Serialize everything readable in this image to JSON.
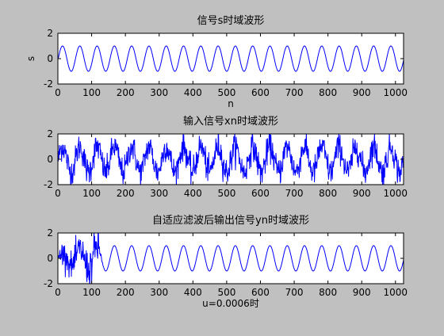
{
  "figure": {
    "background": "#c0c0c0",
    "axes_background": "#ffffff",
    "line_color": "#0000ff"
  },
  "chart_data": [
    {
      "type": "line",
      "title": "信号s时域波形",
      "xlabel": "n",
      "ylabel": "s",
      "xlim": [
        0,
        1024
      ],
      "ylim": [
        -2,
        2
      ],
      "xticks": [
        0,
        100,
        200,
        300,
        400,
        500,
        600,
        700,
        800,
        900,
        1000
      ],
      "yticks": [
        -2,
        0,
        2
      ],
      "grid": false,
      "series": [
        {
          "kind": "sine",
          "amplitude": 1.0,
          "cycles": 20,
          "n": 1024
        }
      ]
    },
    {
      "type": "line",
      "title": "输入信号xn时域波形",
      "xlabel": "",
      "ylabel": "",
      "xlim": [
        0,
        1024
      ],
      "ylim": [
        -2,
        2
      ],
      "xticks": [
        0,
        100,
        200,
        300,
        400,
        500,
        600,
        700,
        800,
        900,
        1000
      ],
      "yticks": [
        -2,
        0,
        2
      ],
      "grid": false,
      "series": [
        {
          "kind": "noisy_sine",
          "amplitude": 1.0,
          "cycles": 20,
          "noise_std": 0.55,
          "n": 1024
        }
      ]
    },
    {
      "type": "line",
      "title": "自适应滤波后输出信号yn时域波形",
      "xlabel": "u=0.0006时",
      "ylabel": "",
      "xlim": [
        0,
        1024
      ],
      "ylim": [
        -2,
        2
      ],
      "xticks": [
        0,
        100,
        200,
        300,
        400,
        500,
        600,
        700,
        800,
        900,
        1000
      ],
      "yticks": [
        -2,
        0,
        2
      ],
      "grid": false,
      "series": [
        {
          "kind": "adaptive_output",
          "amplitude": 1.0,
          "cycles": 20,
          "noise_std": 0.7,
          "converge_at": 120,
          "n": 1024
        }
      ]
    }
  ]
}
